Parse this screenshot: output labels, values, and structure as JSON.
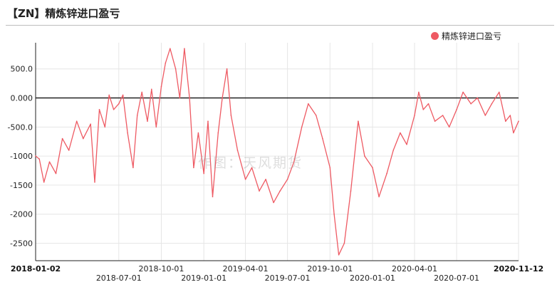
{
  "title": "【ZN】精炼锌进口盈亏",
  "watermark": "作图：天风期货",
  "legend": {
    "label": "精炼锌进口盈亏",
    "position": "top-right"
  },
  "colors": {
    "series": "#ee5a63",
    "grid": "#e6e6e6",
    "axis": "#222222",
    "zero_line": "#222222"
  },
  "chart_data": {
    "type": "line",
    "title": "【ZN】精炼锌进口盈亏",
    "xlabel": "",
    "ylabel": "",
    "ylim": [
      -2800,
      950
    ],
    "grid": true,
    "legend_position": "top-right",
    "y_ticks": [
      500,
      0,
      -500,
      -1000,
      -1500,
      -2000,
      -2500
    ],
    "y_tick_labels": [
      "500.0",
      "0.000",
      "-500.0",
      "-1000",
      "-1500",
      "-2000",
      "-2500"
    ],
    "x_range": [
      "2018-01-02",
      "2020-11-12"
    ],
    "x_ticks_row1": [
      "2018-01-02",
      "2018-10-01",
      "2019-04-01",
      "2019-10-01",
      "2020-04-01",
      "2020-11-12"
    ],
    "x_ticks_row2": [
      "2018-07-01",
      "2019-01-01",
      "2019-07-01",
      "2020-01-01",
      "2020-07-01"
    ],
    "x_ticks_bold": [
      "2018-01-02",
      "2020-11-12"
    ],
    "series": [
      {
        "name": "精炼锌进口盈亏",
        "points": [
          [
            "2018-01-02",
            -1000
          ],
          [
            "2018-01-10",
            -1050
          ],
          [
            "2018-01-20",
            -1450
          ],
          [
            "2018-02-01",
            -1100
          ],
          [
            "2018-02-15",
            -1300
          ],
          [
            "2018-03-01",
            -700
          ],
          [
            "2018-03-15",
            -900
          ],
          [
            "2018-04-01",
            -400
          ],
          [
            "2018-04-15",
            -700
          ],
          [
            "2018-05-01",
            -450
          ],
          [
            "2018-05-10",
            -1450
          ],
          [
            "2018-05-20",
            -200
          ],
          [
            "2018-06-01",
            -500
          ],
          [
            "2018-06-10",
            50
          ],
          [
            "2018-06-20",
            -200
          ],
          [
            "2018-07-01",
            -100
          ],
          [
            "2018-07-10",
            50
          ],
          [
            "2018-07-20",
            -600
          ],
          [
            "2018-08-01",
            -1200
          ],
          [
            "2018-08-10",
            -300
          ],
          [
            "2018-08-20",
            100
          ],
          [
            "2018-09-01",
            -400
          ],
          [
            "2018-09-10",
            150
          ],
          [
            "2018-09-20",
            -500
          ],
          [
            "2018-10-01",
            200
          ],
          [
            "2018-10-10",
            600
          ],
          [
            "2018-10-20",
            850
          ],
          [
            "2018-11-01",
            500
          ],
          [
            "2018-11-10",
            0
          ],
          [
            "2018-11-20",
            850
          ],
          [
            "2018-12-01",
            0
          ],
          [
            "2018-12-10",
            -1200
          ],
          [
            "2018-12-20",
            -600
          ],
          [
            "2019-01-01",
            -1300
          ],
          [
            "2019-01-10",
            -400
          ],
          [
            "2019-01-20",
            -1700
          ],
          [
            "2019-02-01",
            -600
          ],
          [
            "2019-02-10",
            0
          ],
          [
            "2019-02-20",
            500
          ],
          [
            "2019-03-01",
            -300
          ],
          [
            "2019-03-15",
            -900
          ],
          [
            "2019-04-01",
            -1400
          ],
          [
            "2019-04-15",
            -1200
          ],
          [
            "2019-05-01",
            -1600
          ],
          [
            "2019-05-15",
            -1400
          ],
          [
            "2019-06-01",
            -1800
          ],
          [
            "2019-06-15",
            -1600
          ],
          [
            "2019-07-01",
            -1400
          ],
          [
            "2019-07-15",
            -1100
          ],
          [
            "2019-08-01",
            -500
          ],
          [
            "2019-08-15",
            -100
          ],
          [
            "2019-09-01",
            -300
          ],
          [
            "2019-09-15",
            -700
          ],
          [
            "2019-10-01",
            -1200
          ],
          [
            "2019-10-10",
            -2000
          ],
          [
            "2019-10-20",
            -2700
          ],
          [
            "2019-11-01",
            -2500
          ],
          [
            "2019-11-15",
            -1600
          ],
          [
            "2019-12-01",
            -400
          ],
          [
            "2019-12-15",
            -1000
          ],
          [
            "2020-01-01",
            -1200
          ],
          [
            "2020-01-15",
            -1700
          ],
          [
            "2020-02-01",
            -1300
          ],
          [
            "2020-02-15",
            -900
          ],
          [
            "2020-03-01",
            -600
          ],
          [
            "2020-03-15",
            -800
          ],
          [
            "2020-04-01",
            -300
          ],
          [
            "2020-04-10",
            100
          ],
          [
            "2020-04-20",
            -200
          ],
          [
            "2020-05-01",
            -100
          ],
          [
            "2020-05-15",
            -400
          ],
          [
            "2020-06-01",
            -300
          ],
          [
            "2020-06-15",
            -500
          ],
          [
            "2020-07-01",
            -200
          ],
          [
            "2020-07-15",
            100
          ],
          [
            "2020-08-01",
            -100
          ],
          [
            "2020-08-15",
            0
          ],
          [
            "2020-09-01",
            -300
          ],
          [
            "2020-09-15",
            -100
          ],
          [
            "2020-10-01",
            100
          ],
          [
            "2020-10-15",
            -400
          ],
          [
            "2020-10-25",
            -300
          ],
          [
            "2020-11-01",
            -600
          ],
          [
            "2020-11-12",
            -400
          ]
        ]
      }
    ]
  }
}
